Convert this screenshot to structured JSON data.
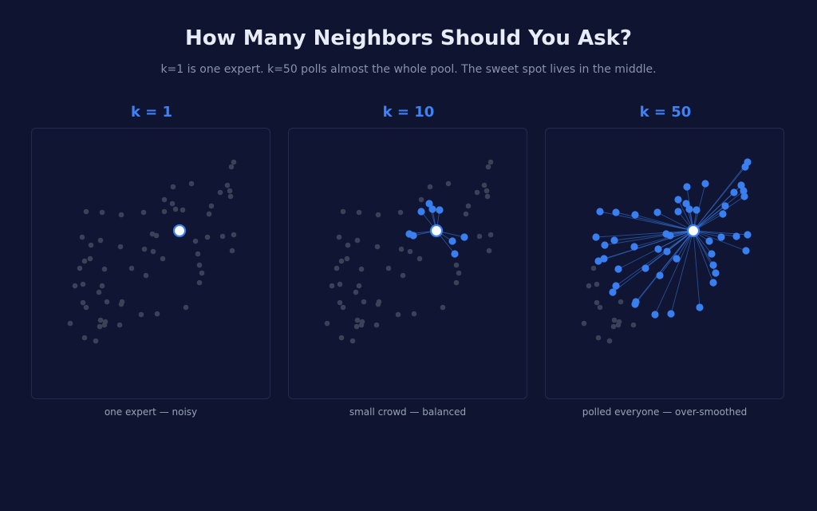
{
  "header": {
    "title": "How Many Neighbors Should You Ask?",
    "subtitle": "k=1 is one expert. k=50 polls almost the whole pool. The sweet spot lives in the middle."
  },
  "colors": {
    "background": "#0f1430",
    "accent": "#3e82f7",
    "neighbor_point": "#3a7ff0",
    "inactive_point": "#3b4258",
    "query_fill": "#ffffff"
  },
  "panels": [
    {
      "id": "k1",
      "heading": "k = 1",
      "k": 1,
      "caption": "one expert — noisy"
    },
    {
      "id": "k10",
      "heading": "k = 10",
      "k": 10,
      "caption": "small crowd — balanced"
    },
    {
      "id": "k50",
      "heading": "k = 50",
      "k": 50,
      "caption": "polled everyone — over-smoothed"
    }
  ]
}
